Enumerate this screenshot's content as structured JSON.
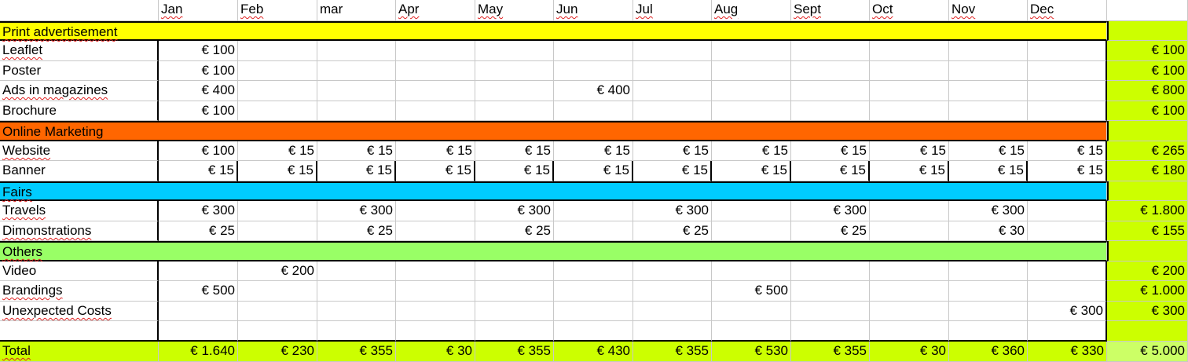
{
  "colors": {
    "print": "#ffff00",
    "online": "#ff6600",
    "fairs": "#00ccff",
    "others": "#99ff66",
    "total_col": "#ccff00",
    "grand_total": "#ccff66"
  },
  "header": {
    "months": [
      "Jan",
      "Feb",
      "mar",
      "Apr",
      "May",
      "Jun",
      "Jul",
      "Aug",
      "Sept",
      "Oct",
      "Nov",
      "Dec"
    ]
  },
  "rows": [
    {
      "type": "section",
      "label": "Print advertisement",
      "color": "print"
    },
    {
      "type": "item",
      "label": "Leaflet",
      "values": [
        "€ 100",
        "",
        "",
        "",
        "",
        "",
        "",
        "",
        "",
        "",
        "",
        ""
      ],
      "total": "€ 100"
    },
    {
      "type": "item",
      "label": "Poster",
      "values": [
        "€ 100",
        "",
        "",
        "",
        "",
        "",
        "",
        "",
        "",
        "",
        "",
        ""
      ],
      "total": "€ 100"
    },
    {
      "type": "item",
      "label": "Ads in magazines",
      "values": [
        "€ 400",
        "",
        "",
        "",
        "",
        "€ 400",
        "",
        "",
        "",
        "",
        "",
        ""
      ],
      "total": "€ 800"
    },
    {
      "type": "item",
      "label": "Brochure",
      "values": [
        "€ 100",
        "",
        "",
        "",
        "",
        "",
        "",
        "",
        "",
        "",
        "",
        ""
      ],
      "total": "€ 100"
    },
    {
      "type": "section",
      "label": "Online Marketing",
      "color": "online"
    },
    {
      "type": "item",
      "label": "Website",
      "values": [
        "€ 100",
        "€ 15",
        "€ 15",
        "€ 15",
        "€ 15",
        "€ 15",
        "€ 15",
        "€ 15",
        "€ 15",
        "€ 15",
        "€ 15",
        "€ 15"
      ],
      "total": "€ 265"
    },
    {
      "type": "item",
      "label": "Banner",
      "values": [
        "€ 15",
        "€ 15",
        "€ 15",
        "€ 15",
        "€ 15",
        "€ 15",
        "€ 15",
        "€ 15",
        "€ 15",
        "€ 15",
        "€ 15",
        "€ 15"
      ],
      "total": "€ 180"
    },
    {
      "type": "section",
      "label": "Fairs",
      "color": "fairs"
    },
    {
      "type": "item",
      "label": "Travels",
      "values": [
        "€ 300",
        "",
        "€ 300",
        "",
        "€ 300",
        "",
        "€ 300",
        "",
        "€ 300",
        "",
        "€ 300",
        ""
      ],
      "total": "€ 1.800"
    },
    {
      "type": "item",
      "label": "Dimonstrations",
      "values": [
        "€ 25",
        "",
        "€ 25",
        "",
        "€ 25",
        "",
        "€ 25",
        "",
        "€ 25",
        "",
        "€ 30",
        ""
      ],
      "total": "€ 155"
    },
    {
      "type": "section",
      "label": "Others",
      "color": "others"
    },
    {
      "type": "item",
      "label": "Video",
      "values": [
        "",
        "€ 200",
        "",
        "",
        "",
        "",
        "",
        "",
        "",
        "",
        "",
        ""
      ],
      "total": "€ 200"
    },
    {
      "type": "item",
      "label": "Brandings",
      "values": [
        "€ 500",
        "",
        "",
        "",
        "",
        "",
        "",
        "€ 500",
        "",
        "",
        "",
        ""
      ],
      "total": "€ 1.000"
    },
    {
      "type": "item",
      "label": "Unexpected Costs",
      "values": [
        "",
        "",
        "",
        "",
        "",
        "",
        "",
        "",
        "",
        "",
        "",
        "€ 300"
      ],
      "total": "€ 300"
    },
    {
      "type": "item",
      "label": "",
      "values": [
        "",
        "",
        "",
        "",
        "",
        "",
        "",
        "",
        "",
        "",
        "",
        ""
      ],
      "total": ""
    },
    {
      "type": "total",
      "label": "Total",
      "values": [
        "€ 1.640",
        "€ 230",
        "€ 355",
        "€ 30",
        "€ 355",
        "€ 430",
        "€ 355",
        "€ 530",
        "€ 355",
        "€ 30",
        "€ 360",
        "€ 330"
      ],
      "total": "€ 5.000"
    }
  ]
}
